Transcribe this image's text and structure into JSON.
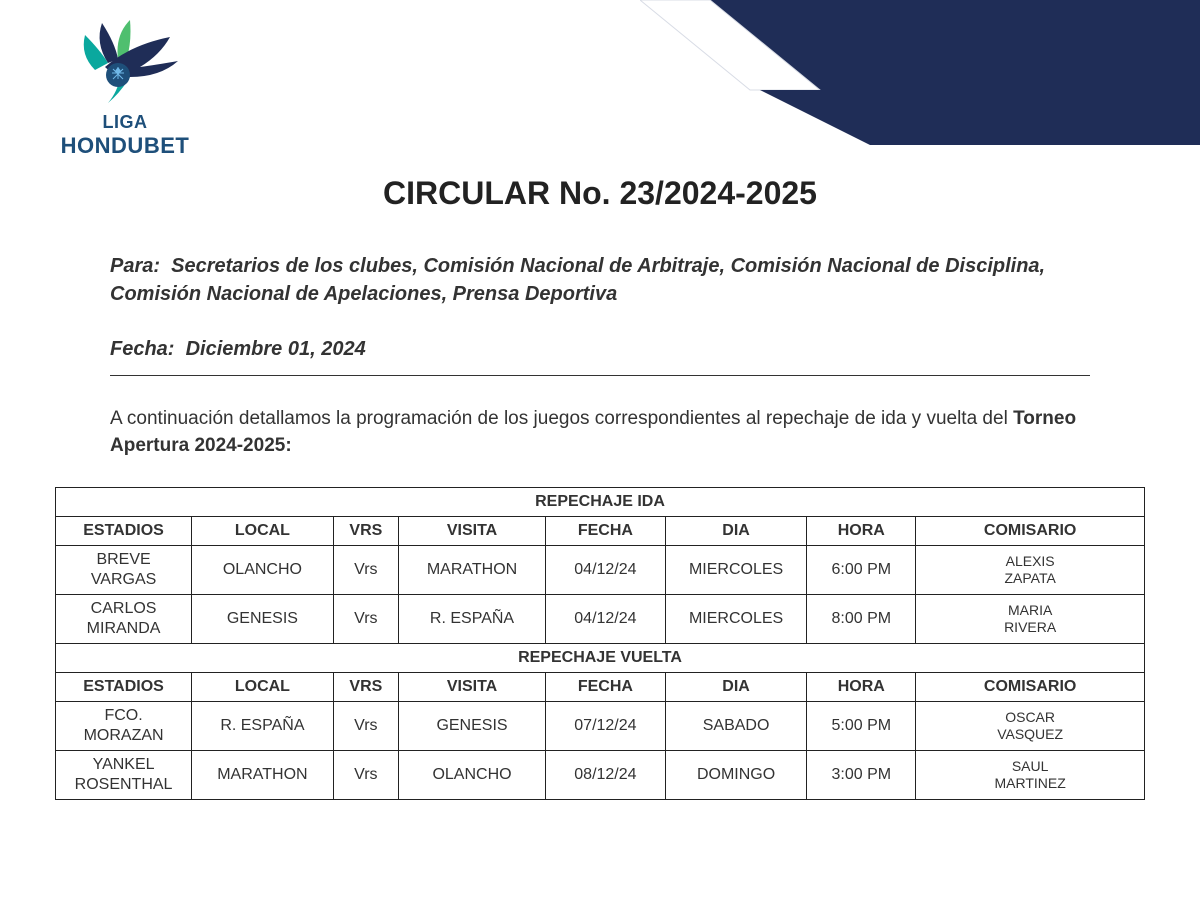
{
  "logo": {
    "liga": "LIGA",
    "brand": "HONDUBET",
    "colors": {
      "primary": "#1e4f7a",
      "teal": "#0aa89e",
      "navy": "#1f2d57",
      "green": "#4fbf6f"
    }
  },
  "corner": {
    "color_dark": "#1f2d57",
    "color_light": "#ffffff"
  },
  "header": {
    "title": "CIRCULAR No. 23/2024-2025",
    "para_label": "Para:",
    "para_text": "Secretarios de los clubes, Comisión Nacional de Arbitraje, Comisión Nacional de Disciplina, Comisión Nacional de Apelaciones, Prensa Deportiva",
    "fecha_label": "Fecha:",
    "fecha_value": "Diciembre 01, 2024"
  },
  "intro": {
    "prefix": "A continuación detallamos la programación de los juegos correspondientes al repechaje de ida y vuelta del ",
    "bold": "Torneo Apertura 2024-2025:",
    "suffix": ""
  },
  "table": {
    "columns": [
      "ESTADIOS",
      "LOCAL",
      "VRS",
      "VISITA",
      "FECHA",
      "DIA",
      "HORA",
      "COMISARIO"
    ],
    "col_widths_pct": [
      12.5,
      13,
      6,
      13.5,
      11,
      13,
      10,
      21
    ],
    "sections": [
      {
        "title": "REPECHAJE IDA",
        "rows": [
          {
            "estadio": "BREVE VARGAS",
            "local": "OLANCHO",
            "vrs": "Vrs",
            "visita": "MARATHON",
            "fecha": "04/12/24",
            "dia": "MIERCOLES",
            "hora": "6:00 PM",
            "comisario": "ALEXIS ZAPATA"
          },
          {
            "estadio": "CARLOS MIRANDA",
            "local": "GENESIS",
            "vrs": "Vrs",
            "visita": "R. ESPAÑA",
            "fecha": "04/12/24",
            "dia": "MIERCOLES",
            "hora": "8:00 PM",
            "comisario": "MARIA RIVERA"
          }
        ]
      },
      {
        "title": "REPECHAJE VUELTA",
        "rows": [
          {
            "estadio": "FCO. MORAZAN",
            "local": "R. ESPAÑA",
            "vrs": "Vrs",
            "visita": "GENESIS",
            "fecha": "07/12/24",
            "dia": "SABADO",
            "hora": "5:00 PM",
            "comisario": "OSCAR VASQUEZ"
          },
          {
            "estadio": "YANKEL ROSENTHAL",
            "local": "MARATHON",
            "vrs": "Vrs",
            "visita": "OLANCHO",
            "fecha": "08/12/24",
            "dia": "DOMINGO",
            "hora": "3:00 PM",
            "comisario": "SAUL MARTINEZ"
          }
        ]
      }
    ]
  }
}
